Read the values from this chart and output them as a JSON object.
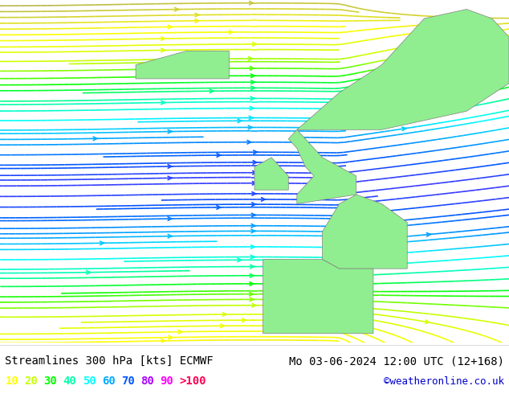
{
  "title_left": "Streamlines 300 hPa [kts] ECMWF",
  "title_right": "Mo 03-06-2024 12:00 UTC (12+168)",
  "credit": "©weatheronline.co.uk",
  "legend_values": [
    "10",
    "20",
    "30",
    "40",
    "50",
    "60",
    "70",
    "80",
    "90",
    ">100"
  ],
  "legend_colors": [
    "#ffff00",
    "#c8ff00",
    "#00ff00",
    "#00ffaa",
    "#00ffff",
    "#00aaff",
    "#0055ff",
    "#aa00ff",
    "#ff00ff",
    "#ff0055"
  ],
  "bg_color": "#d8d8d8",
  "land_color": "#90ee90",
  "coast_color": "#808080",
  "figsize": [
    6.34,
    4.9
  ],
  "dpi": 100
}
